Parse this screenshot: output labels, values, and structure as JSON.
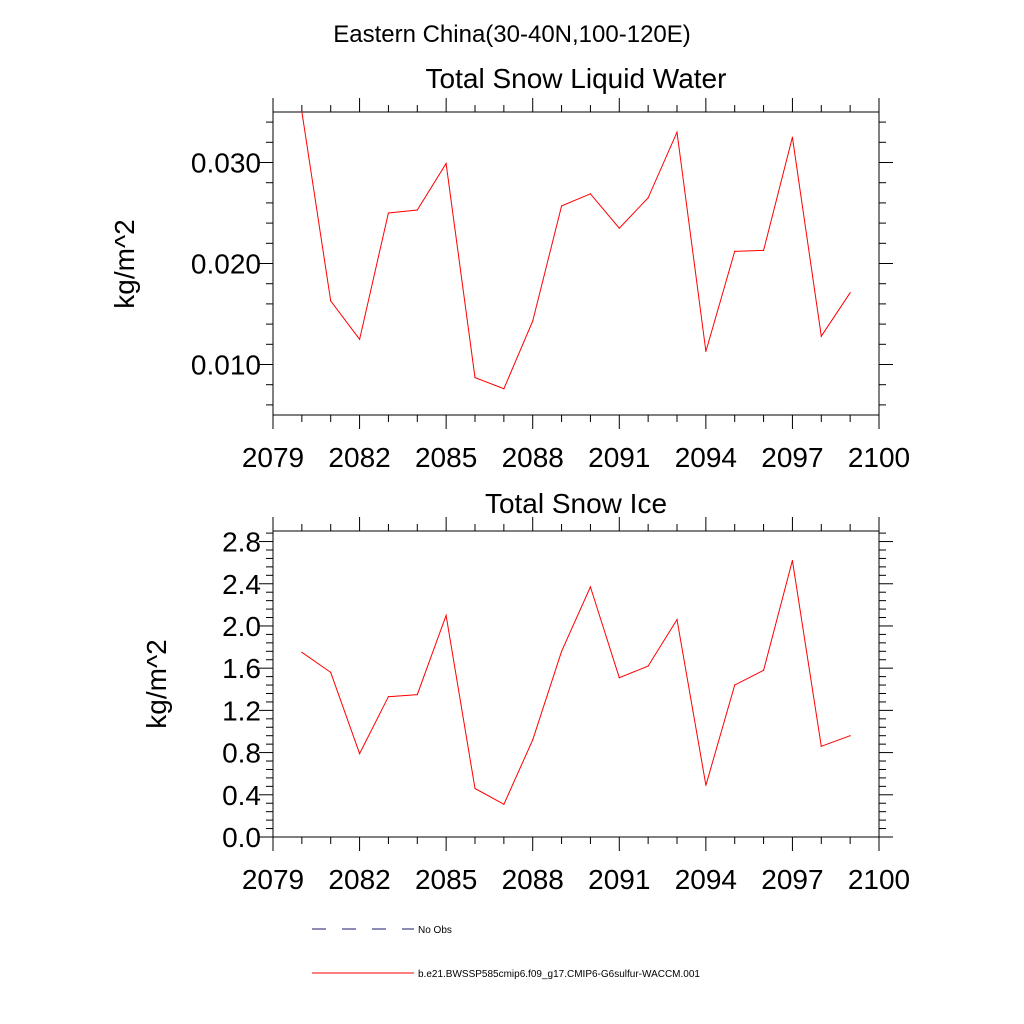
{
  "figure": {
    "suptitle": "Eastern China(30-40N,100-120E)"
  },
  "chart_data": [
    {
      "type": "line",
      "title": "Total Snow Liquid Water",
      "xlabel": "",
      "ylabel": "kg/m^2",
      "xlim": [
        2079,
        2100
      ],
      "ylim": [
        0.005,
        0.035
      ],
      "xticks": [
        "2079",
        "2082",
        "2085",
        "2088",
        "2091",
        "2094",
        "2097",
        "2100"
      ],
      "yticks": [
        "0.010",
        "0.020",
        "0.030"
      ],
      "grid": false,
      "series": [
        {
          "name": "b.e21.BWSSP585cmip6.f09_g17.CMIP6-G6sulfur-WACCM.001",
          "color": "#ff0000",
          "x": [
            2080,
            2081,
            2082,
            2083,
            2084,
            2085,
            2086,
            2087,
            2088,
            2089,
            2090,
            2091,
            2092,
            2093,
            2094,
            2095,
            2096,
            2097,
            2098,
            2099
          ],
          "y": [
            0.035,
            0.0163,
            0.0125,
            0.025,
            0.0253,
            0.0299,
            0.0087,
            0.0076,
            0.0143,
            0.0257,
            0.0269,
            0.0235,
            0.0265,
            0.033,
            0.0113,
            0.0212,
            0.0213,
            0.0325,
            0.0128,
            0.0171
          ]
        }
      ]
    },
    {
      "type": "line",
      "title": "Total Snow Ice",
      "xlabel": "",
      "ylabel": "kg/m^2",
      "xlim": [
        2079,
        2100
      ],
      "ylim": [
        0.0,
        2.9
      ],
      "xticks": [
        "2079",
        "2082",
        "2085",
        "2088",
        "2091",
        "2094",
        "2097",
        "2100"
      ],
      "yticks": [
        "0.0",
        "0.4",
        "0.8",
        "1.2",
        "1.6",
        "2.0",
        "2.4",
        "2.8"
      ],
      "grid": false,
      "series": [
        {
          "name": "b.e21.BWSSP585cmip6.f09_g17.CMIP6-G6sulfur-WACCM.001",
          "color": "#ff0000",
          "x": [
            2080,
            2081,
            2082,
            2083,
            2084,
            2085,
            2086,
            2087,
            2088,
            2089,
            2090,
            2091,
            2092,
            2093,
            2094,
            2095,
            2096,
            2097,
            2098,
            2099
          ],
          "y": [
            1.75,
            1.56,
            0.79,
            1.33,
            1.35,
            2.1,
            0.46,
            0.31,
            0.92,
            1.76,
            2.37,
            1.51,
            1.62,
            2.06,
            0.49,
            1.44,
            1.58,
            2.62,
            0.86,
            0.96
          ]
        }
      ]
    }
  ],
  "legend": {
    "placement": "bottom",
    "items": [
      {
        "label": "No Obs",
        "color": "#1a1a6e",
        "style": "dashed"
      },
      {
        "label": "b.e21.BWSSP585cmip6.f09_g17.CMIP6-G6sulfur-WACCM.001",
        "color": "#ff0000",
        "style": "solid"
      }
    ]
  }
}
